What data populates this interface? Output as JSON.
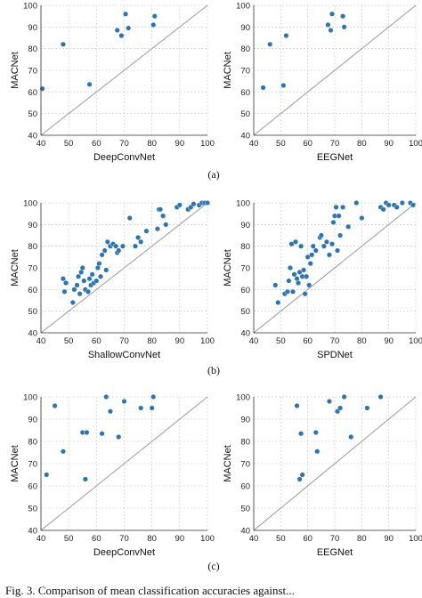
{
  "panel_labels": [
    "(a)",
    "(b)",
    "(c)"
  ],
  "caption": "Fig. 3.   Comparison of mean classification accuracies against...",
  "chart_data": [
    {
      "type": "scatter",
      "panel": "(a)",
      "xlabel": "DeepConvNet",
      "ylabel": "MACNet",
      "xlim": [
        40,
        100
      ],
      "ylim": [
        40,
        100
      ],
      "xticks": [
        40,
        50,
        60,
        70,
        80,
        90,
        100
      ],
      "yticks": [
        40,
        50,
        60,
        70,
        80,
        90,
        100
      ],
      "grid": true,
      "diagonal": true,
      "color": "#2e75b0",
      "points": [
        [
          40.5,
          61.5
        ],
        [
          48,
          82
        ],
        [
          57.5,
          63.5
        ],
        [
          67.5,
          88.5
        ],
        [
          69,
          86
        ],
        [
          70.5,
          96
        ],
        [
          71.5,
          89.5
        ],
        [
          80.5,
          91
        ],
        [
          81,
          95
        ]
      ]
    },
    {
      "type": "scatter",
      "panel": "(a)",
      "xlabel": "EEGNet",
      "ylabel": "MACNet",
      "xlim": [
        40,
        100
      ],
      "ylim": [
        40,
        100
      ],
      "xticks": [
        40,
        50,
        60,
        70,
        80,
        90,
        100
      ],
      "yticks": [
        40,
        50,
        60,
        70,
        80,
        90,
        100
      ],
      "grid": true,
      "diagonal": true,
      "color": "#2e75b0",
      "points": [
        [
          43.5,
          62
        ],
        [
          46,
          82
        ],
        [
          51,
          63
        ],
        [
          52,
          86
        ],
        [
          67.5,
          91
        ],
        [
          68.5,
          88.5
        ],
        [
          69,
          96
        ],
        [
          73,
          95
        ],
        [
          73.5,
          90
        ]
      ]
    },
    {
      "type": "scatter",
      "panel": "(b)",
      "xlabel": "ShallowConvNet",
      "ylabel": "MACNet",
      "xlim": [
        40,
        100
      ],
      "ylim": [
        40,
        100
      ],
      "xticks": [
        40,
        50,
        60,
        70,
        80,
        90,
        100
      ],
      "yticks": [
        40,
        50,
        60,
        70,
        80,
        90,
        100
      ],
      "grid": true,
      "diagonal": true,
      "color": "#2e75b0",
      "points": [
        [
          48,
          65
        ],
        [
          48.5,
          59
        ],
        [
          49,
          63
        ],
        [
          51.5,
          54
        ],
        [
          52,
          60
        ],
        [
          53,
          62
        ],
        [
          53.5,
          66
        ],
        [
          54,
          58
        ],
        [
          54.5,
          68
        ],
        [
          55,
          70
        ],
        [
          55.5,
          64
        ],
        [
          56,
          60
        ],
        [
          57,
          59
        ],
        [
          57.5,
          65
        ],
        [
          58,
          62
        ],
        [
          58.5,
          67
        ],
        [
          59,
          63
        ],
        [
          60,
          64
        ],
        [
          60.5,
          70
        ],
        [
          61,
          72
        ],
        [
          61.5,
          66
        ],
        [
          62,
          76
        ],
        [
          63,
          78
        ],
        [
          63.5,
          69
        ],
        [
          64,
          82
        ],
        [
          65,
          80
        ],
        [
          66,
          81
        ],
        [
          67,
          80
        ],
        [
          67.5,
          77
        ],
        [
          68,
          78
        ],
        [
          69.5,
          80
        ],
        [
          72,
          93
        ],
        [
          74,
          80
        ],
        [
          75,
          84
        ],
        [
          76,
          82
        ],
        [
          78,
          87
        ],
        [
          82,
          88
        ],
        [
          82.5,
          97
        ],
        [
          83,
          97
        ],
        [
          84,
          94
        ],
        [
          85,
          90
        ],
        [
          89,
          98
        ],
        [
          90,
          99
        ],
        [
          93,
          97
        ],
        [
          94,
          98
        ],
        [
          95,
          99.5
        ],
        [
          97,
          99
        ],
        [
          98,
          100
        ],
        [
          99,
          100
        ],
        [
          100,
          100
        ]
      ]
    },
    {
      "type": "scatter",
      "panel": "(b)",
      "xlabel": "SPDNet",
      "ylabel": "MACNet",
      "xlim": [
        40,
        100
      ],
      "ylim": [
        40,
        100
      ],
      "xticks": [
        40,
        50,
        60,
        70,
        80,
        90,
        100
      ],
      "yticks": [
        40,
        50,
        60,
        70,
        80,
        90,
        100
      ],
      "grid": true,
      "diagonal": true,
      "color": "#2e75b0",
      "points": [
        [
          48,
          62
        ],
        [
          49,
          54
        ],
        [
          51.5,
          58
        ],
        [
          52.5,
          59
        ],
        [
          53,
          64
        ],
        [
          53.5,
          70
        ],
        [
          54,
          81
        ],
        [
          54.5,
          59
        ],
        [
          55,
          67
        ],
        [
          55.5,
          82
        ],
        [
          56,
          65
        ],
        [
          56.5,
          63
        ],
        [
          57,
          68
        ],
        [
          57.5,
          80
        ],
        [
          58,
          66
        ],
        [
          58.5,
          69
        ],
        [
          59,
          58
        ],
        [
          59.5,
          66
        ],
        [
          60,
          75
        ],
        [
          60.5,
          62
        ],
        [
          61,
          72
        ],
        [
          61.5,
          76
        ],
        [
          62,
          80
        ],
        [
          63,
          78
        ],
        [
          64.5,
          84
        ],
        [
          65,
          85
        ],
        [
          66,
          80
        ],
        [
          67,
          82
        ],
        [
          68,
          76
        ],
        [
          69,
          81
        ],
        [
          69.5,
          91
        ],
        [
          70,
          94
        ],
        [
          70.5,
          98
        ],
        [
          71,
          78
        ],
        [
          71.5,
          94
        ],
        [
          72,
          85
        ],
        [
          73,
          98
        ],
        [
          75,
          89
        ],
        [
          78,
          100
        ],
        [
          80,
          93
        ],
        [
          87,
          98
        ],
        [
          88,
          97
        ],
        [
          89,
          100
        ],
        [
          90,
          99
        ],
        [
          92,
          99
        ],
        [
          93,
          98
        ],
        [
          95,
          100
        ],
        [
          98,
          100
        ],
        [
          99,
          99
        ]
      ]
    },
    {
      "type": "scatter",
      "panel": "(c)",
      "xlabel": "DeepConvNet",
      "ylabel": "MACNet",
      "xlim": [
        40,
        100
      ],
      "ylim": [
        40,
        100
      ],
      "xticks": [
        40,
        50,
        60,
        70,
        80,
        90,
        100
      ],
      "yticks": [
        40,
        50,
        60,
        70,
        80,
        90,
        100
      ],
      "grid": true,
      "diagonal": true,
      "color": "#2e75b0",
      "points": [
        [
          42,
          65
        ],
        [
          45,
          96
        ],
        [
          48,
          75.5
        ],
        [
          55,
          84
        ],
        [
          56.5,
          84
        ],
        [
          56,
          63
        ],
        [
          62,
          83.5
        ],
        [
          63.5,
          100
        ],
        [
          65,
          93.5
        ],
        [
          68,
          82
        ],
        [
          70,
          98
        ],
        [
          76,
          95
        ],
        [
          80,
          95
        ],
        [
          80.5,
          100
        ]
      ]
    },
    {
      "type": "scatter",
      "panel": "(c)",
      "xlabel": "EEGNet",
      "ylabel": "MACNet",
      "xlim": [
        40,
        100
      ],
      "ylim": [
        40,
        100
      ],
      "xticks": [
        40,
        50,
        60,
        70,
        80,
        90,
        100
      ],
      "yticks": [
        40,
        50,
        60,
        70,
        80,
        90,
        100
      ],
      "grid": true,
      "diagonal": true,
      "color": "#2e75b0",
      "points": [
        [
          56,
          96
        ],
        [
          57,
          63
        ],
        [
          57.5,
          83.5
        ],
        [
          58,
          65
        ],
        [
          63,
          84
        ],
        [
          63.5,
          75.5
        ],
        [
          68,
          98
        ],
        [
          71,
          93.5
        ],
        [
          72,
          95
        ],
        [
          73.5,
          100
        ],
        [
          76,
          82
        ],
        [
          82,
          95
        ],
        [
          87,
          100
        ]
      ]
    }
  ]
}
